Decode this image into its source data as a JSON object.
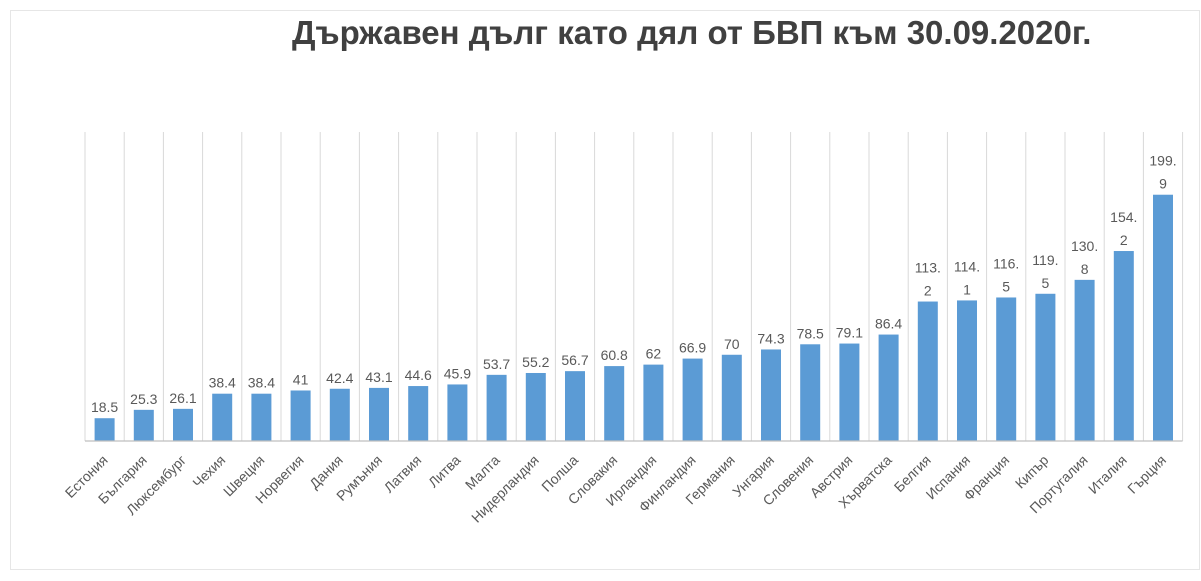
{
  "chart_data": {
    "type": "bar",
    "title": "Държавен дълг като дял от БВП към 30.09.2020г.",
    "xlabel": "",
    "ylabel": "",
    "ylim": [
      0,
      220
    ],
    "grid": "vertical",
    "bar_color": "#5b9bd5",
    "categories": [
      "Естония",
      "България",
      "Люксембург",
      "Чехия",
      "Швеция",
      "Норвегия",
      "Дания",
      "Румъния",
      "Латвия",
      "Литва",
      "Малта",
      "Нидерландия",
      "Полша",
      "Словакия",
      "Ирландия",
      "Финландия",
      "Германия",
      "Унгария",
      "Словения",
      "Австрия",
      "Хърватска",
      "Белгия",
      "Испания",
      "Франция",
      "Кипър",
      "Португалия",
      "Италия",
      "Гърция"
    ],
    "values": [
      18.5,
      25.3,
      26.1,
      38.4,
      38.4,
      41,
      42.4,
      43.1,
      44.6,
      45.9,
      53.7,
      55.2,
      56.7,
      60.8,
      62,
      66.9,
      70,
      74.3,
      78.5,
      79.1,
      86.4,
      113.2,
      114.1,
      116.5,
      119.5,
      130.8,
      154.2,
      199.9
    ],
    "value_labels": [
      "18.5",
      "25.3",
      "26.1",
      "38.4",
      "38.4",
      "41",
      "42.4",
      "43.1",
      "44.6",
      "45.9",
      "53.7",
      "55.2",
      "56.7",
      "60.8",
      "62",
      "66.9",
      "70",
      "74.3",
      "78.5",
      "79.1",
      "86.4",
      "113.2",
      "114.1",
      "116.5",
      "119.5",
      "130.8",
      "154.2",
      "199.9"
    ]
  }
}
